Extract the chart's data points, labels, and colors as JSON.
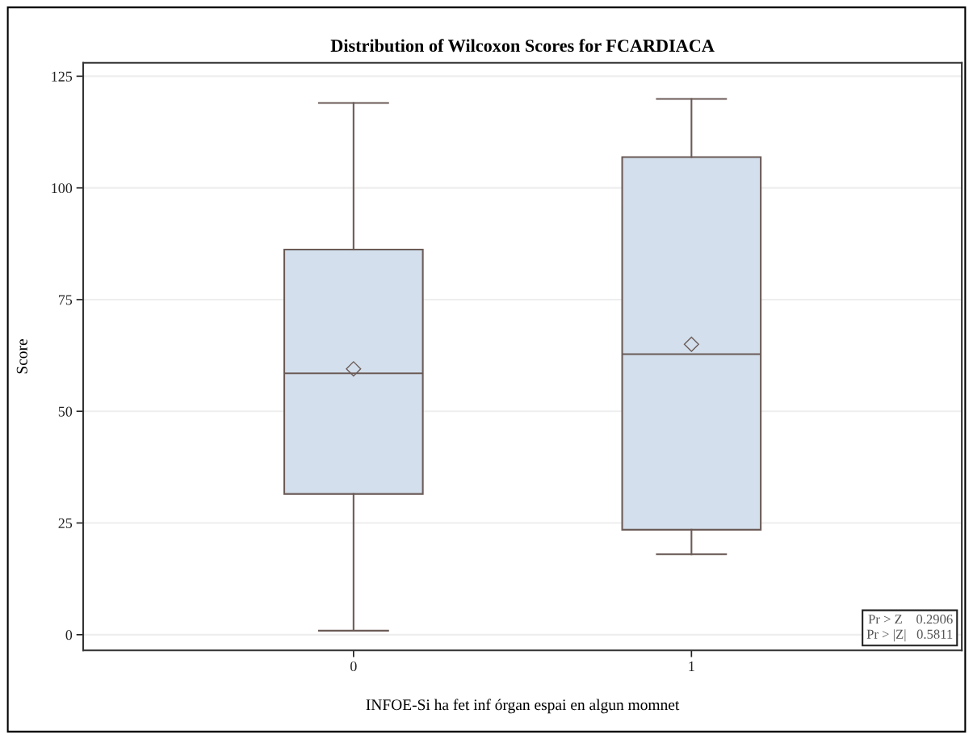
{
  "chart_data": {
    "type": "box",
    "title": "Distribution of Wilcoxon Scores for FCARDIACA",
    "xlabel": "INFOE-Si ha fet inf órgan espai en algun momnet",
    "ylabel": "Score",
    "categories": [
      "0",
      "1"
    ],
    "boxes": [
      {
        "low": 0.9,
        "q1": 31.5,
        "median": 58.5,
        "q3": 86.2,
        "high": 119.0,
        "mean": 59.5
      },
      {
        "low": 18.0,
        "q1": 23.5,
        "median": 62.8,
        "q3": 106.9,
        "high": 119.9,
        "mean": 65.0
      }
    ],
    "color": "#d3dfec",
    "ylim": [
      -3.5,
      128
    ],
    "yticks": [
      0,
      25,
      50,
      75,
      100,
      125
    ],
    "grid": "y",
    "marker": "diamond",
    "annotations": [
      "Pr > Z    0.2906",
      "Pr > |Z|   0.5811"
    ]
  }
}
